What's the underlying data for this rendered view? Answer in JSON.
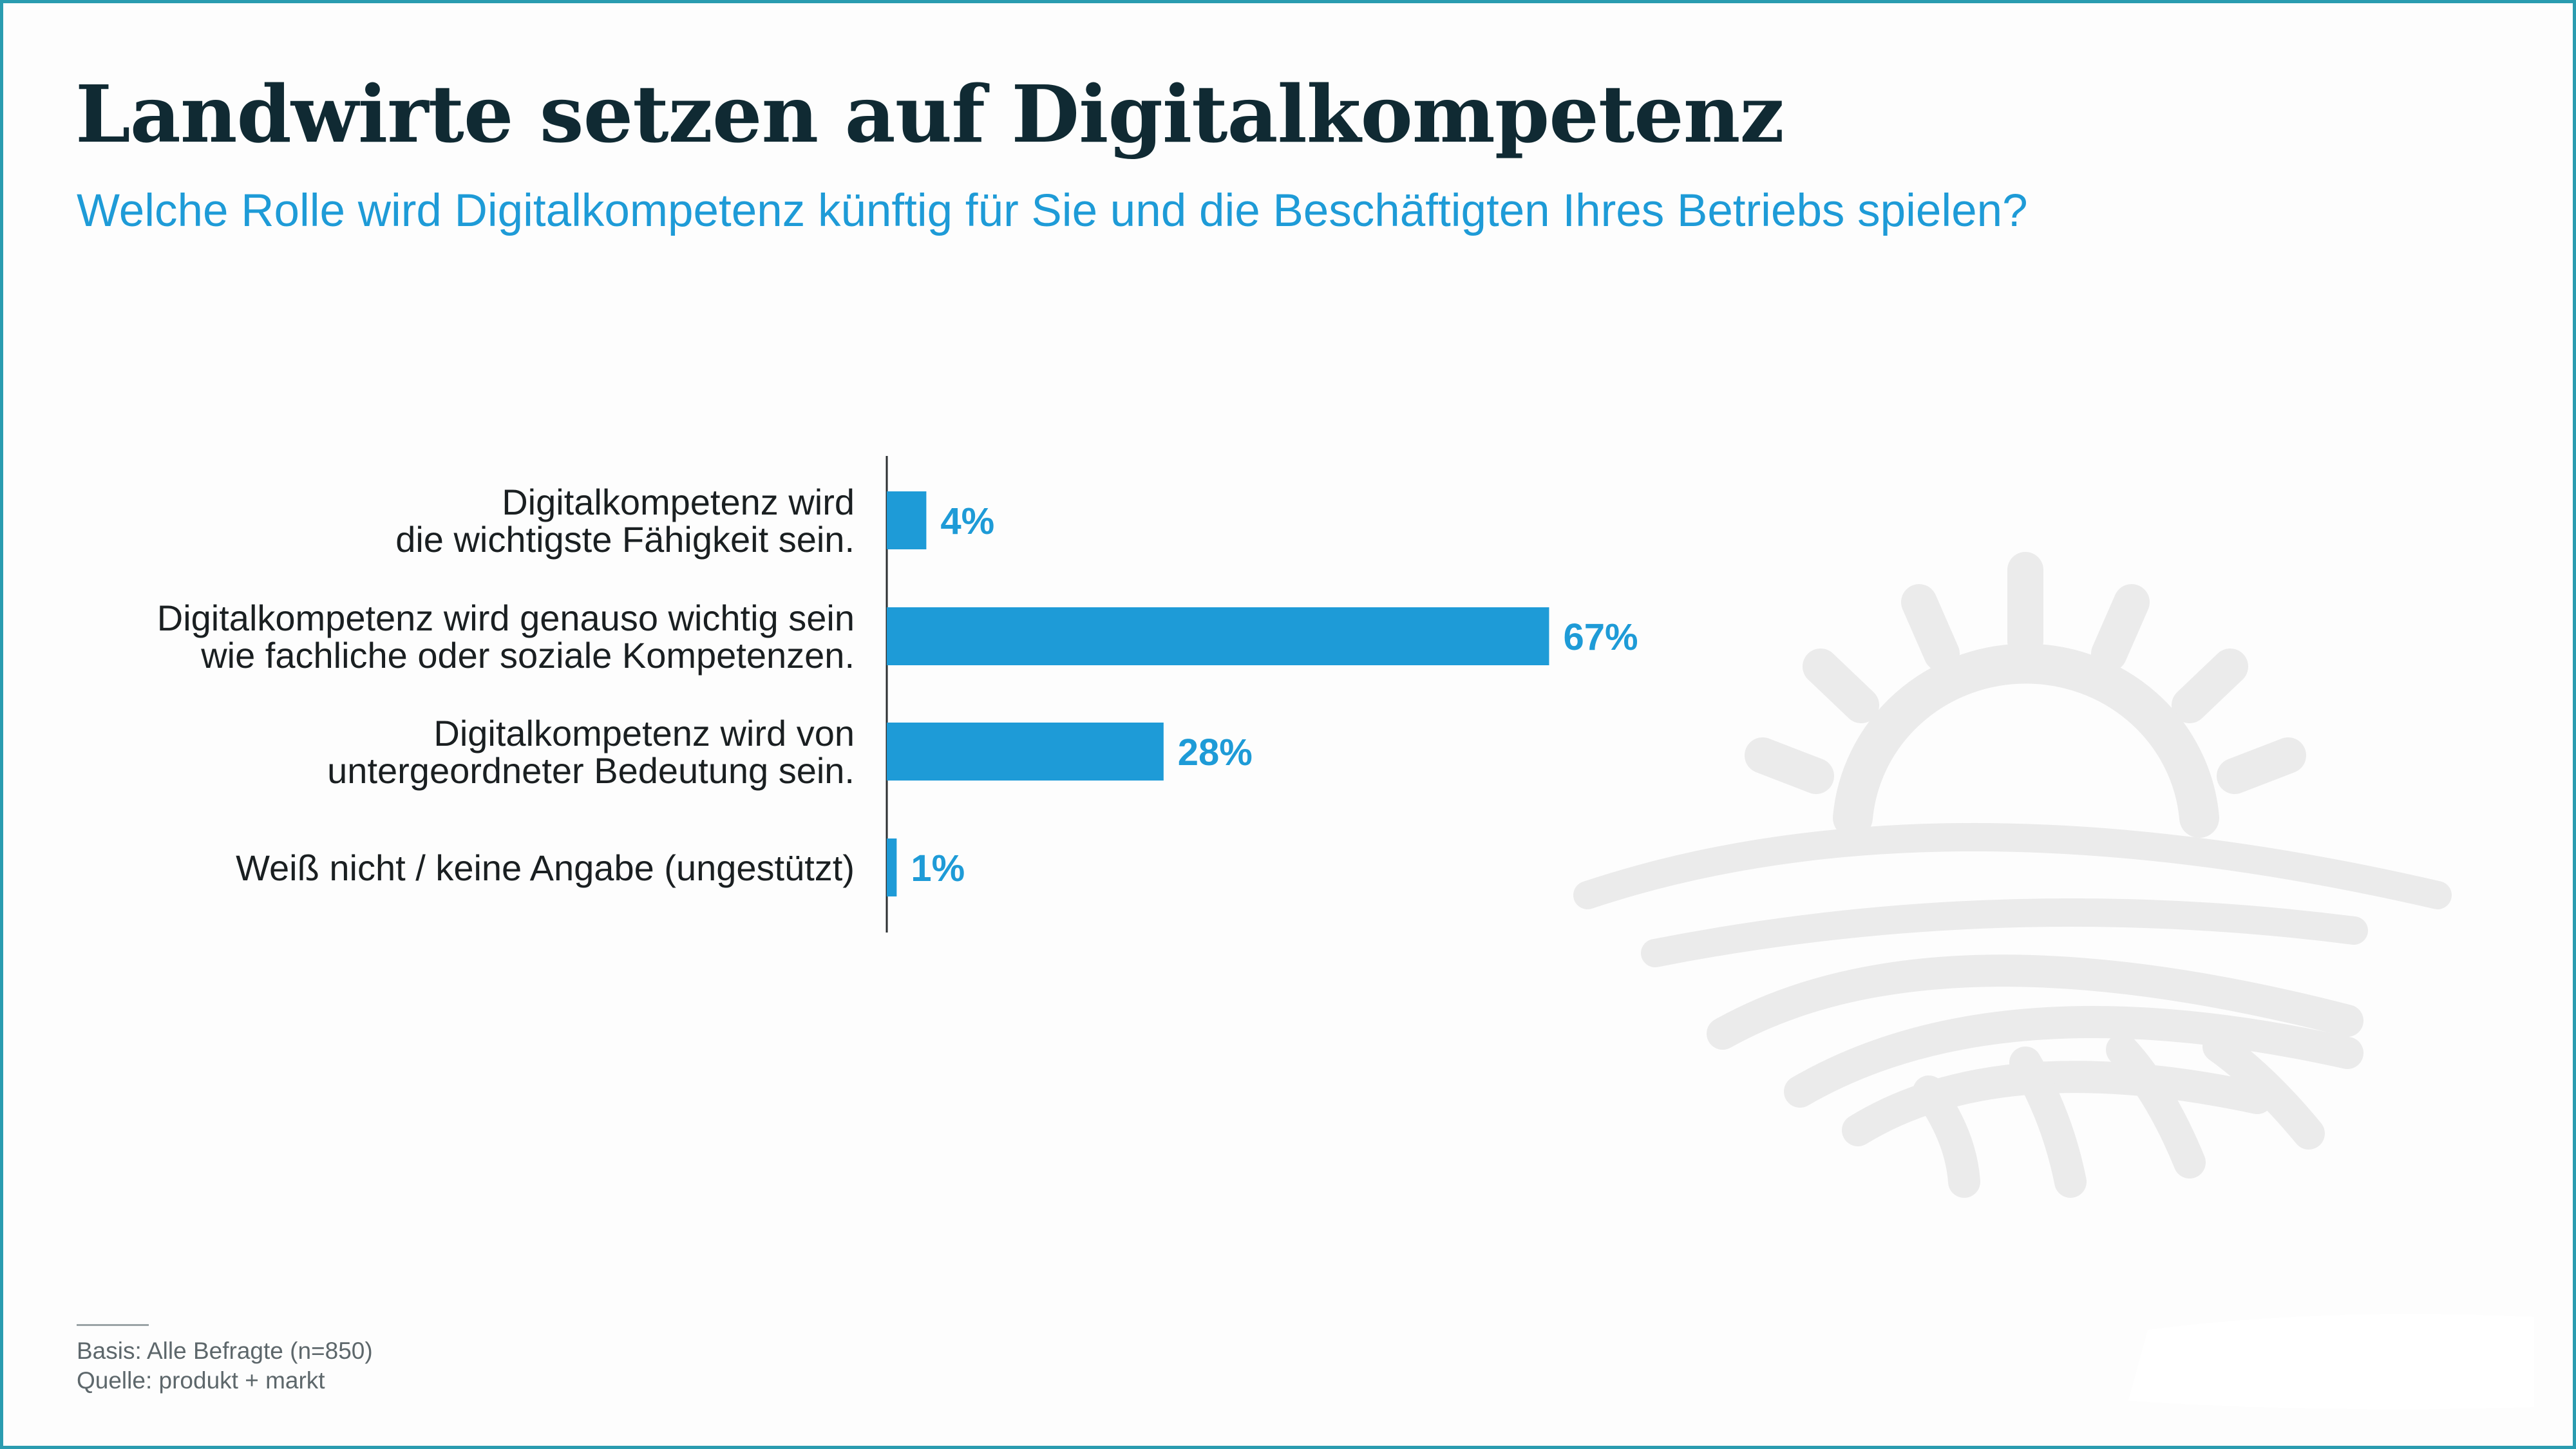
{
  "header": {
    "title": "Landwirte setzen auf Digitalkompetenz",
    "subtitle": "Welche Rolle wird Digitalkompetenz künftig für Sie und die Beschäftigten Ihres Betriebs spielen?"
  },
  "footer": {
    "base": "Basis: Alle Befragte (n=850)",
    "source": "Quelle: produkt + markt"
  },
  "colors": {
    "bar": "#1e9bd7",
    "label": "#1e9bd7",
    "title": "#102a33",
    "frame": "#2a9cb0",
    "decor": "#e9e9e9"
  },
  "decor": {
    "icon": "sun-over-field-icon"
  },
  "chart_data": {
    "type": "bar",
    "orientation": "horizontal",
    "categories": [
      [
        "Digitalkompetenz wird",
        "die wichtigste Fähigkeit sein."
      ],
      [
        "Digitalkompetenz wird genauso wichtig sein",
        "wie fachliche oder soziale Kompetenzen."
      ],
      [
        "Digitalkompetenz wird von",
        "untergeordneter Bedeutung sein."
      ],
      [
        "Weiß nicht / keine Angabe (ungestützt)"
      ]
    ],
    "values": [
      4,
      67,
      28,
      1
    ],
    "value_labels": [
      "4%",
      "67%",
      "28%",
      "1%"
    ],
    "unit": "%",
    "xlim": [
      0,
      100
    ],
    "grid": false,
    "legend": "none"
  }
}
